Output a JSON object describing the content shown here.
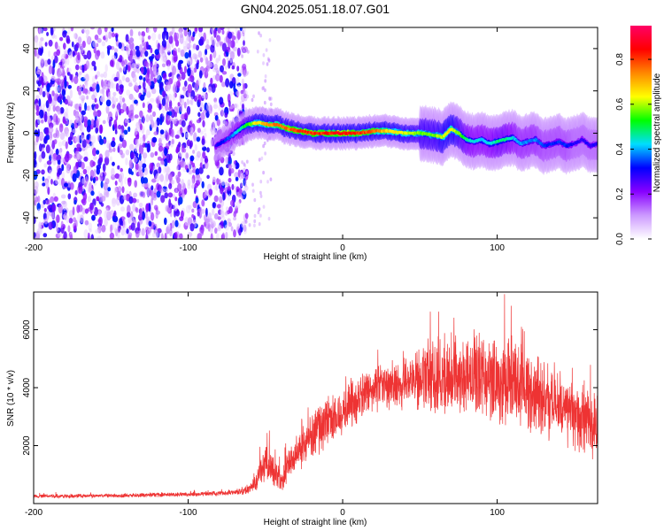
{
  "title": "GN04.2025.051.18.07.G01",
  "chart_data": [
    {
      "type": "heatmap",
      "xlabel": "Height of straight line (km)",
      "ylabel": "Frequency (Hz)",
      "xlim": [
        -200,
        165
      ],
      "ylim": [
        -50,
        50
      ],
      "x_ticks": [
        -200,
        -100,
        0,
        100
      ],
      "y_ticks": [
        -40,
        -20,
        0,
        20,
        40
      ],
      "colorbar": {
        "label": "Normalized spectral amplitude",
        "range": [
          0,
          0.95
        ],
        "ticks": [
          0.0,
          0.2,
          0.4,
          0.6,
          0.8
        ],
        "tick_labels": [
          "0.0",
          "0.2",
          "0.4",
          "0.6",
          "0.8"
        ],
        "colors": [
          "#ffffff",
          "#cc99ff",
          "#8800ff",
          "#0000ff",
          "#00ddff",
          "#00ff00",
          "#ffff00",
          "#ff8800",
          "#ff0000",
          "#ff0066"
        ]
      },
      "noise_region_x": [
        -200,
        -62
      ],
      "ridge": {
        "x": [
          -82,
          -75,
          -68,
          -62,
          -55,
          -48,
          -42,
          -35,
          -28,
          -20,
          -10,
          0,
          10,
          20,
          30,
          40,
          50,
          60,
          65,
          70,
          75,
          80,
          85,
          90,
          95,
          100,
          105,
          110,
          115,
          120,
          125,
          130,
          135,
          140,
          145,
          150,
          155,
          160,
          165
        ],
        "freq": [
          -6,
          -3,
          1,
          4,
          5,
          4,
          4,
          2,
          1,
          0,
          0,
          0,
          0,
          1,
          1,
          0,
          0,
          -1,
          -2,
          2,
          0,
          -3,
          -4,
          -3,
          -5,
          -4,
          -3,
          -2,
          -5,
          -4,
          -3,
          -6,
          -5,
          -4,
          -6,
          -5,
          -3,
          -6,
          -5
        ],
        "amplitude": [
          0.3,
          0.35,
          0.45,
          0.55,
          0.7,
          0.75,
          0.8,
          0.8,
          0.85,
          0.85,
          0.85,
          0.9,
          0.85,
          0.8,
          0.7,
          0.65,
          0.6,
          0.6,
          0.65,
          0.7,
          0.6,
          0.5,
          0.45,
          0.45,
          0.45,
          0.5,
          0.5,
          0.45,
          0.4,
          0.4,
          0.4,
          0.35,
          0.35,
          0.35,
          0.35,
          0.3,
          0.3,
          0.3,
          0.3
        ]
      }
    },
    {
      "type": "line",
      "xlabel": "Height of straight line (km)",
      "ylabel": "SNR (10 * v/v)",
      "xlim": [
        -200,
        165
      ],
      "ylim": [
        0,
        7300
      ],
      "x_ticks": [
        -200,
        -100,
        0,
        100
      ],
      "y_ticks": [
        2000,
        4000,
        6000
      ],
      "color": "#ee3333",
      "series": [
        {
          "x": [
            -200,
            -180,
            -160,
            -140,
            -120,
            -100,
            -80,
            -70,
            -60,
            -55,
            -50,
            -45,
            -40,
            -35,
            -30,
            -25,
            -20,
            -15,
            -10,
            -5,
            0,
            5,
            10,
            15,
            20,
            25,
            30,
            40,
            50,
            60,
            70,
            80,
            90,
            100,
            110,
            120,
            130,
            140,
            150,
            160,
            165
          ],
          "y": [
            250,
            260,
            270,
            280,
            300,
            320,
            350,
            380,
            500,
            900,
            1400,
            1200,
            700,
            1300,
            1800,
            2100,
            2400,
            2600,
            2800,
            3000,
            3200,
            3400,
            3600,
            3800,
            3900,
            4000,
            4100,
            4200,
            4300,
            4400,
            4500,
            4500,
            4400,
            4300,
            4100,
            3900,
            3600,
            3300,
            3000,
            2700,
            2600
          ],
          "noise_amplitude": [
            80,
            80,
            80,
            80,
            90,
            90,
            100,
            100,
            200,
            500,
            700,
            700,
            500,
            700,
            800,
            900,
            1000,
            1000,
            1000,
            1000,
            1000,
            900,
            900,
            900,
            900,
            900,
            1000,
            1100,
            1300,
            1500,
            1600,
            1700,
            1700,
            1700,
            1600,
            1600,
            1500,
            1400,
            1400,
            1300,
            1300
          ]
        }
      ]
    }
  ]
}
